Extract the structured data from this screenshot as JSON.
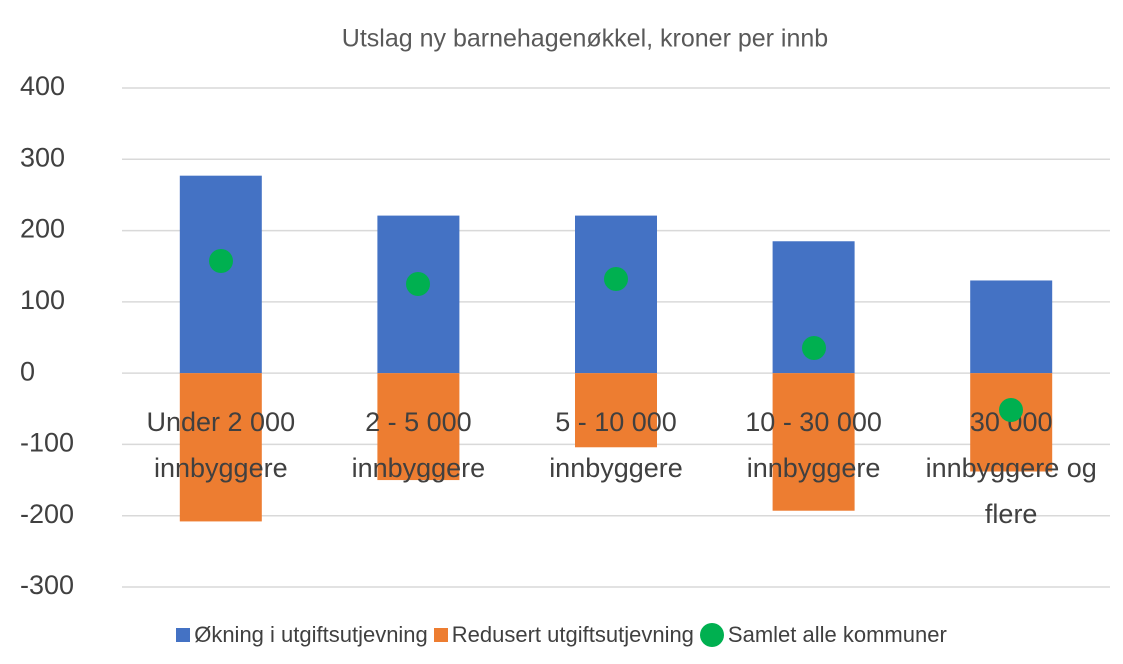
{
  "chart_data": {
    "type": "bar",
    "title": "Utslag ny barnehagenøkkel, kroner per innb",
    "categories": [
      "Under 2 000 innbyggere",
      "2 - 5 000 innbyggere",
      "5 - 10 000 innbyggere",
      "10 - 30 000 innbyggere",
      "30 000 innbyggere og flere"
    ],
    "series": [
      {
        "name": "Økning i utgiftsutjevning",
        "color": "#4472c4",
        "kind": "bar",
        "values": [
          277,
          221,
          221,
          185,
          130
        ]
      },
      {
        "name": "Redusert utgiftsutjevning",
        "color": "#ed7d31",
        "kind": "bar",
        "values": [
          -208,
          -150,
          -104,
          -193,
          -138
        ]
      },
      {
        "name": "Samlet alle kommuner",
        "color": "#00b050",
        "kind": "dot",
        "values": [
          158,
          125,
          132,
          35,
          -52
        ]
      }
    ],
    "ylim": [
      -300,
      400
    ],
    "yticks": [
      -300,
      -200,
      -100,
      0,
      100,
      200,
      300,
      400
    ],
    "grid": true,
    "legend": "bottom"
  }
}
